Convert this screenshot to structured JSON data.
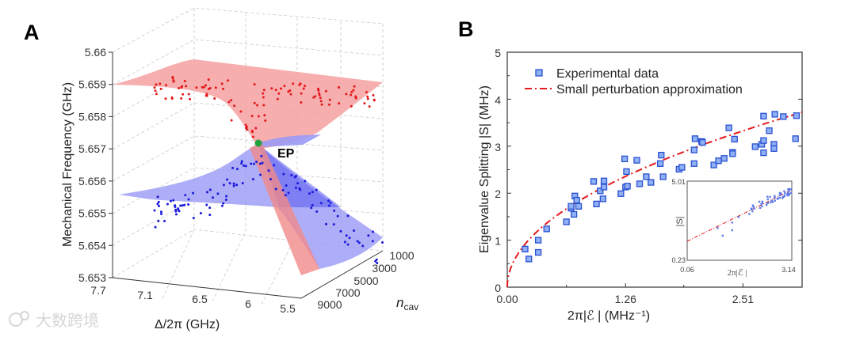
{
  "panels": {
    "a": "A",
    "b": "B"
  },
  "watermark": "大数跨境",
  "chart_data": [
    {
      "type": "scatter",
      "subtype": "3d-surface",
      "panel": "A",
      "zlabel": "Mechanical  Frequency  (GHz)",
      "xlabel": "Δ/2π (GHz)",
      "ylabel_main": "n",
      "ylabel_sub": "cav",
      "z_ticks": [
        "5.66",
        "5.659",
        "5.658",
        "5.657",
        "5.656",
        "5.655",
        "5.654",
        "5.653"
      ],
      "x_ticks": [
        "7.7",
        "7.1",
        "6.5",
        "6",
        "5.5"
      ],
      "y_ticks": [
        "1000",
        "3000",
        "5000",
        "7000",
        "9000"
      ],
      "zlim": [
        5.653,
        5.66
      ],
      "xlim": [
        7.7,
        5.5
      ],
      "ylim": [
        1000,
        9000
      ],
      "annotation": "EP",
      "series": [
        {
          "name": "upper branch",
          "color": "#e41a1c"
        },
        {
          "name": "lower branch",
          "color": "#1a1adc"
        }
      ],
      "colors": {
        "upper_surface": "#f4a0a0",
        "lower_surface": "#9a9af6",
        "ep": "#22a040"
      }
    },
    {
      "type": "scatter",
      "panel": "B",
      "xlabel": "2π|ℰ | (MHz⁻¹)",
      "ylabel": "Eigenvalue Splitting |S| (MHz)",
      "xlim": [
        0,
        3.14
      ],
      "ylim": [
        0,
        5
      ],
      "x_ticks": [
        "0.00",
        "1.26",
        "2.51"
      ],
      "x_tick_values": [
        0,
        1.26,
        2.51
      ],
      "y_ticks": [
        "0",
        "1",
        "2",
        "3",
        "4",
        "5"
      ],
      "legend": {
        "placement": "top-left",
        "entries": [
          "Experimental data",
          "Small perturbation approximation"
        ]
      },
      "series": [
        {
          "name": "Experimental data",
          "marker": "square",
          "color": "#3b6fe0",
          "x": [
            0.19,
            0.23,
            0.33,
            0.33,
            0.42,
            0.63,
            0.68,
            0.68,
            0.71,
            0.72,
            0.74,
            0.76,
            0.92,
            0.95,
            0.99,
            1.02,
            1.03,
            1.03,
            1.21,
            1.25,
            1.26,
            1.27,
            1.28,
            1.38,
            1.41,
            1.48,
            1.53,
            1.63,
            1.64,
            1.66,
            1.83,
            1.86,
            1.99,
            1.99,
            2.0,
            2.07,
            2.08,
            2.2,
            2.25,
            2.31,
            2.36,
            2.4,
            2.4,
            2.42,
            2.64,
            2.71,
            2.73,
            2.73,
            2.73,
            2.79,
            2.84,
            2.84,
            2.85,
            2.94,
            3.08,
            3.07
          ],
          "y": [
            0.81,
            0.6,
            1.0,
            0.74,
            1.24,
            1.39,
            1.68,
            1.72,
            1.55,
            1.94,
            1.85,
            1.72,
            2.25,
            1.77,
            2.05,
            1.88,
            2.26,
            2.13,
            1.99,
            2.73,
            2.13,
            2.46,
            2.15,
            2.7,
            2.2,
            2.35,
            2.23,
            2.63,
            2.81,
            2.35,
            2.51,
            2.55,
            2.63,
            2.92,
            3.16,
            3.1,
            3.08,
            2.6,
            2.69,
            2.74,
            3.39,
            2.87,
            2.84,
            3.15,
            2.99,
            3.04,
            3.12,
            3.64,
            2.86,
            3.33,
            3.04,
            2.95,
            3.68,
            3.63,
            3.65,
            3.16
          ]
        },
        {
          "name": "Small perturbation approximation",
          "style": "dash-dot",
          "color": "#e41a1c",
          "formula": "S = 2.1*sqrt(x)"
        }
      ],
      "inset": {
        "type": "scatter",
        "scale": "log-log",
        "xlabel": "2π|ℰ |",
        "ylabel": "|S|",
        "x_ticks": [
          "0.06",
          "3.14"
        ],
        "y_ticks": [
          "5.01",
          "0.23"
        ]
      }
    }
  ]
}
